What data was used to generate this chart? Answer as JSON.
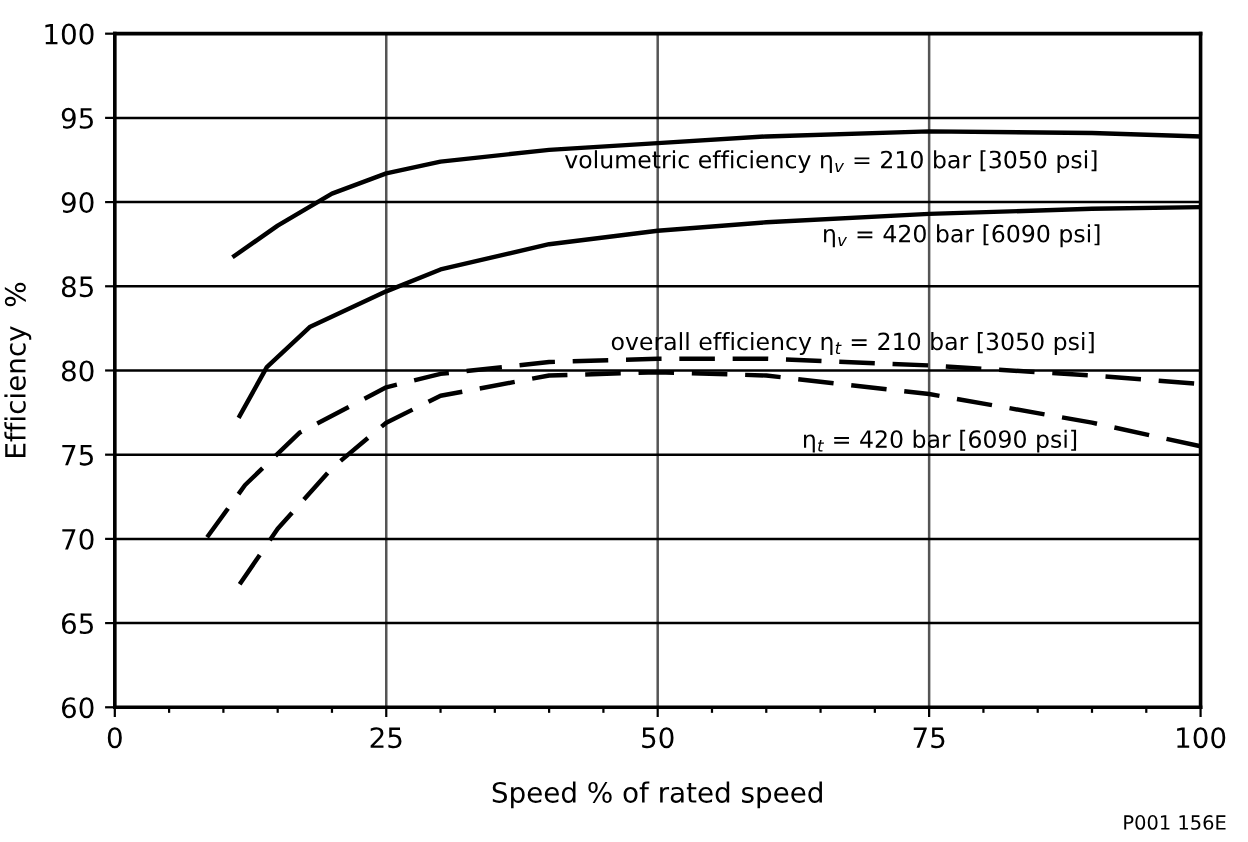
{
  "chart_data": {
    "type": "line",
    "xlabel": "Speed % of rated speed",
    "ylabel": "Efficiency  %",
    "xlim": [
      0,
      100
    ],
    "ylim": [
      60,
      100
    ],
    "xticks": [
      0,
      {
        "value": 5,
        "label": null
      },
      {
        "value": 10,
        "label": null
      },
      {
        "value": 15,
        "label": null
      },
      {
        "value": 20,
        "label": null
      },
      25,
      {
        "value": 30,
        "label": null
      },
      {
        "value": 35,
        "label": null
      },
      {
        "value": 40,
        "label": null
      },
      {
        "value": 45,
        "label": null
      },
      50,
      {
        "value": 55,
        "label": null
      },
      {
        "value": 60,
        "label": null
      },
      {
        "value": 65,
        "label": null
      },
      {
        "value": 70,
        "label": null
      },
      75,
      {
        "value": 80,
        "label": null
      },
      {
        "value": 85,
        "label": null
      },
      {
        "value": 90,
        "label": null
      },
      {
        "value": 95,
        "label": null
      },
      100
    ],
    "yticks": [
      60,
      65,
      70,
      75,
      80,
      85,
      90,
      95,
      100
    ],
    "grid": true,
    "legend": false,
    "marker": "none",
    "series": [
      {
        "color": "#000000",
        "line_style": "solid",
        "x": [
          11,
          15,
          20,
          25,
          30,
          40,
          50,
          60,
          75,
          90,
          100
        ],
        "values": [
          86.8,
          88.6,
          90.5,
          91.7,
          92.4,
          93.1,
          93.5,
          93.9,
          94.2,
          94.1,
          93.9
        ]
      },
      {
        "color": "#000000",
        "line_style": "solid",
        "x": [
          11.5,
          14,
          18,
          25,
          30,
          40,
          50,
          60,
          75,
          90,
          100
        ],
        "values": [
          77.3,
          80.2,
          82.6,
          84.7,
          86.0,
          87.5,
          88.3,
          88.8,
          89.3,
          89.6,
          89.7
        ]
      },
      {
        "color": "#000000",
        "line_style": "dashed",
        "x": [
          8.5,
          12,
          17,
          25,
          30,
          40,
          50,
          60,
          75,
          90,
          100
        ],
        "values": [
          70.1,
          73.2,
          76.3,
          79.0,
          79.8,
          80.5,
          80.7,
          80.7,
          80.3,
          79.7,
          79.2
        ]
      },
      {
        "color": "#000000",
        "line_style": "dashed",
        "x": [
          11.5,
          15,
          20,
          25,
          30,
          40,
          50,
          60,
          75,
          90,
          100
        ],
        "values": [
          67.3,
          70.6,
          74.2,
          76.9,
          78.5,
          79.7,
          79.9,
          79.7,
          78.6,
          76.9,
          75.5
        ]
      }
    ],
    "annotations": [
      "volumetric efficiency η$_{v}$ = 210 bar [3050 psi]",
      "η$_{v}$ = 420 bar [6090 psi]",
      "overall efficiency η$_{t}$ = 210 bar [3050 psi]",
      "η$_{t}$ = 420 bar [6090 psi]",
      "P001 156E"
    ]
  }
}
